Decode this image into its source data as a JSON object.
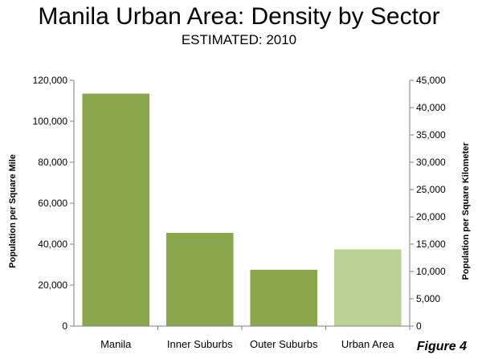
{
  "figure_label": "Figure 4",
  "chart_data": {
    "type": "bar",
    "title": "Manila Urban Area: Density by Sector",
    "subtitle": "ESTIMATED: 2010",
    "categories": [
      "Manila",
      "Inner Suburbs",
      "Outer Suburbs",
      "Urban Area"
    ],
    "values": [
      113500,
      45500,
      27500,
      37500
    ],
    "bar_colors": [
      "#8aa64a",
      "#8aa64a",
      "#8aa64a",
      "#bcd396"
    ],
    "ylabel": "Population per Square Mile",
    "ylabel_right": "Population per Square Kilometer",
    "ylim": [
      0,
      120000
    ],
    "yticks": [
      0,
      20000,
      40000,
      60000,
      80000,
      100000,
      120000
    ],
    "ytick_labels": [
      "0",
      "20,000",
      "40,000",
      "60,000",
      "80,000",
      "100,000",
      "120,000"
    ],
    "ylim_right": [
      0,
      45000
    ],
    "yticks_right": [
      0,
      5000,
      10000,
      15000,
      20000,
      25000,
      30000,
      35000,
      40000,
      45000
    ],
    "ytick_labels_right": [
      "0",
      "5,000",
      "10,000",
      "15,000",
      "20,000",
      "25,000",
      "30,000",
      "35,000",
      "40,000",
      "45,000"
    ],
    "grid": false,
    "legend": "none"
  }
}
